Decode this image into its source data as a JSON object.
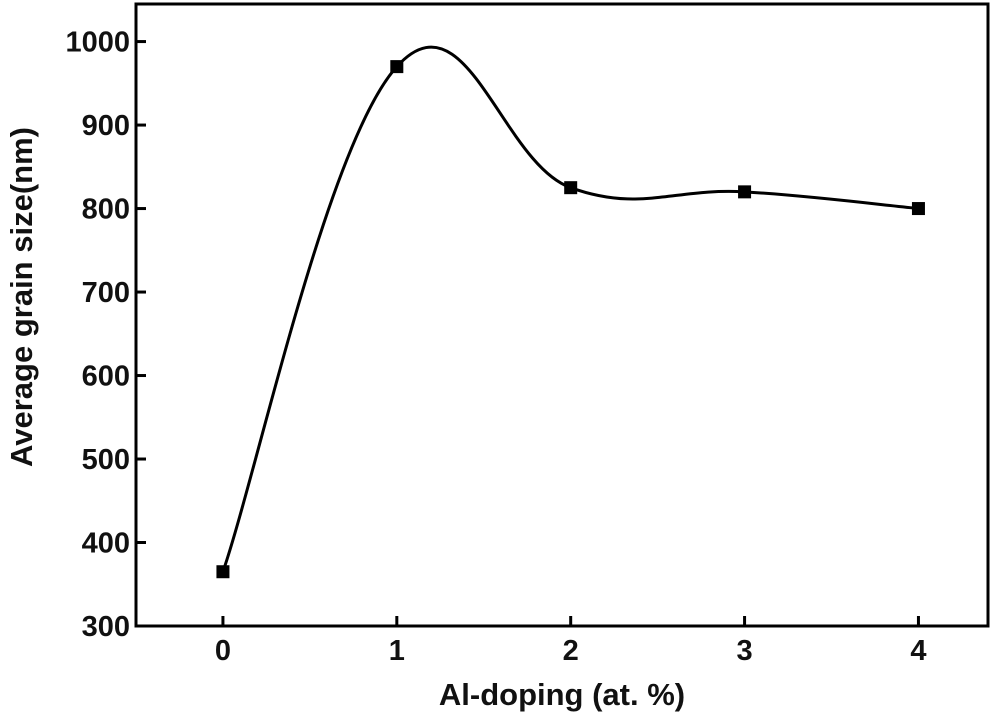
{
  "chart_data": {
    "type": "line",
    "title": "",
    "xlabel": "Al-doping (at. %)",
    "ylabel": "Average grain size(nm)",
    "x_ticks": [
      "0",
      "1",
      "2",
      "3",
      "4"
    ],
    "y_ticks": [
      "300",
      "400",
      "500",
      "600",
      "700",
      "800",
      "900",
      "1000"
    ],
    "xlim": [
      -0.5,
      4.4
    ],
    "ylim": [
      300,
      1045
    ],
    "grid": false,
    "legend": "none",
    "series": [
      {
        "x": [
          0,
          1,
          2,
          3,
          4
        ],
        "values": [
          365,
          970,
          825,
          820,
          800
        ],
        "marker": "square",
        "line": "smooth",
        "color": "#000000"
      }
    ]
  }
}
